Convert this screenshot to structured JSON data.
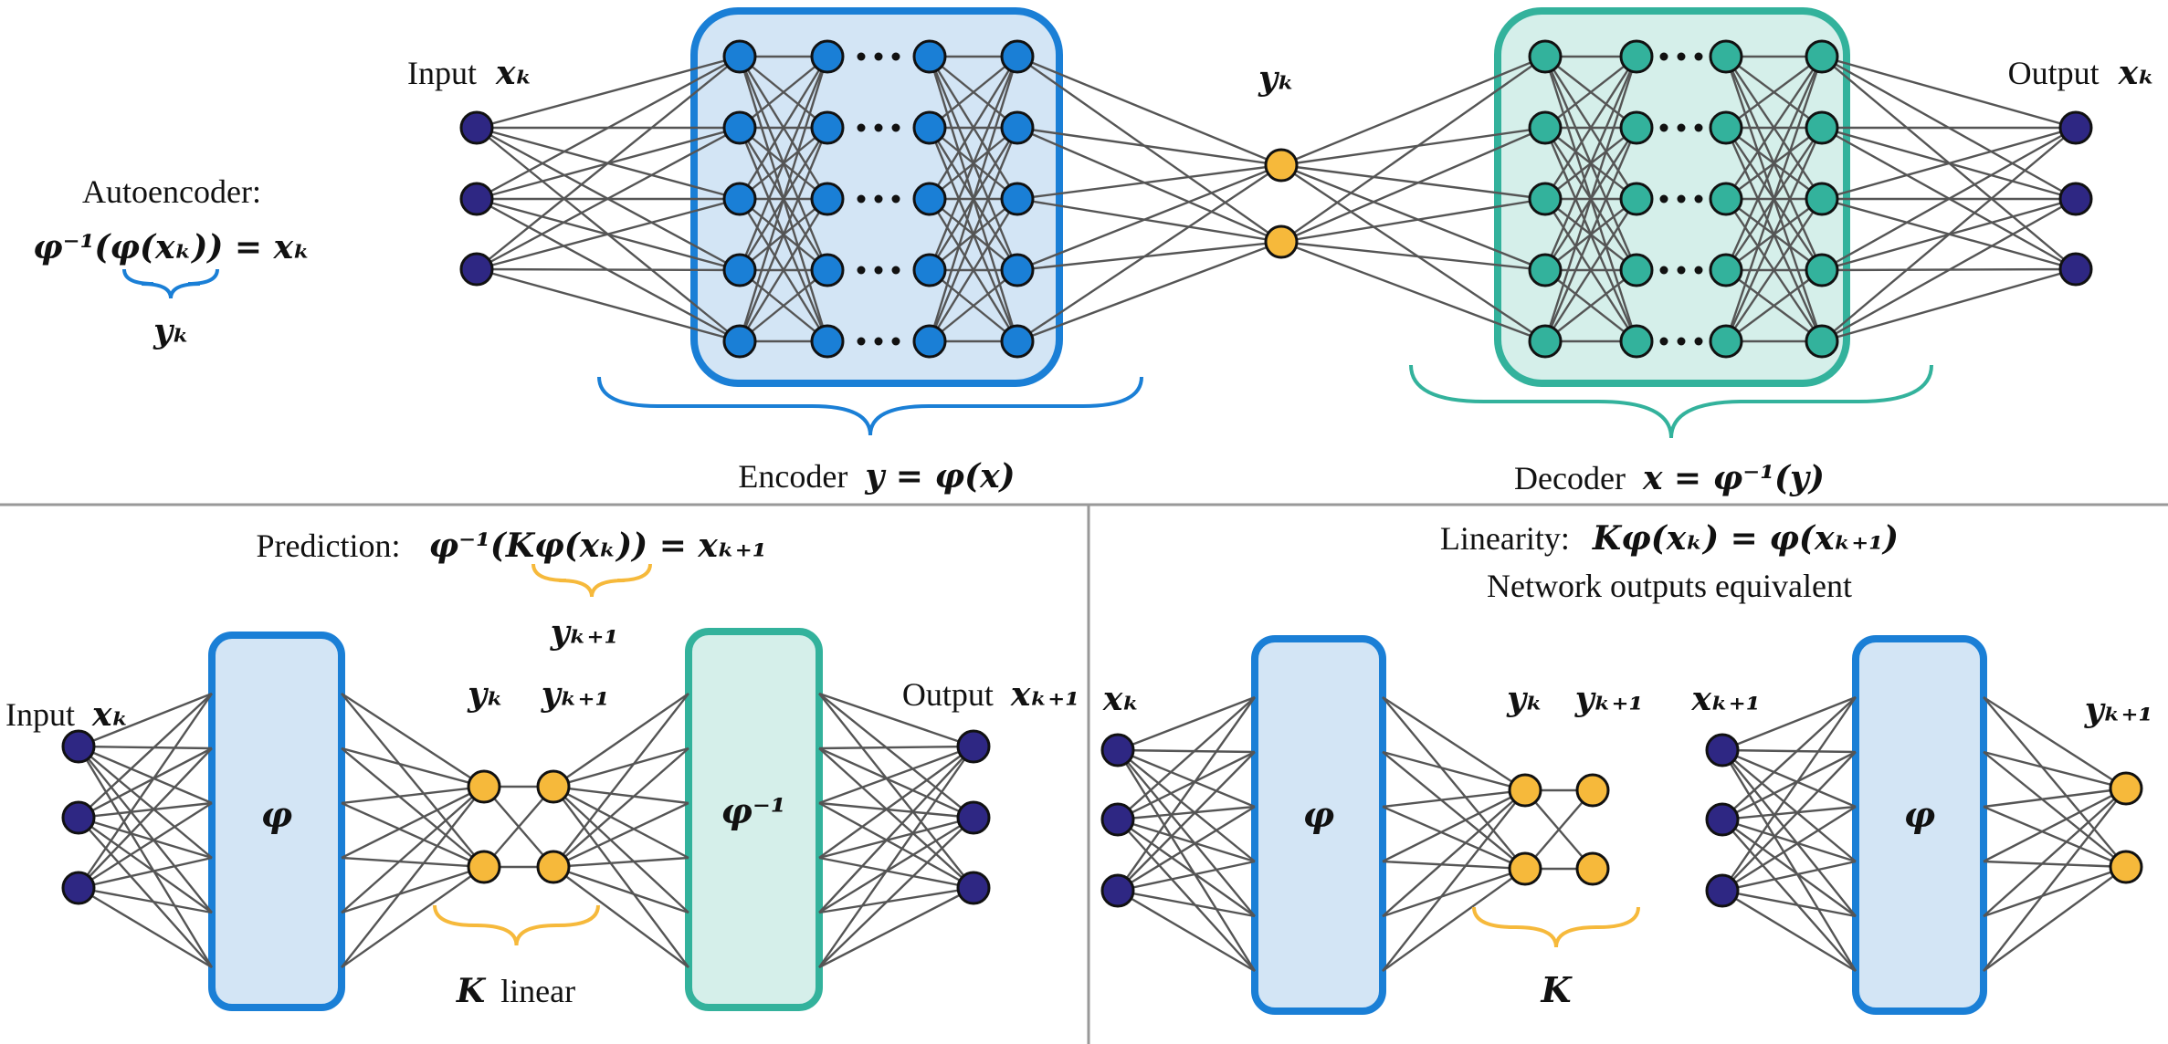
{
  "colors": {
    "io_node": "#2e2783",
    "encoder_node": "#1a7fd6",
    "decoder_node": "#33b29c",
    "latent_node": "#f6b93b",
    "encoder_border": "#1a7fd6",
    "encoder_fill": "#d3e5f5",
    "decoder_border": "#33b29c",
    "decoder_fill": "#d5efea",
    "brace_blue": "#1a7fd6",
    "brace_teal": "#33b29c",
    "brace_yellow": "#f6b93b",
    "divider": "#999999"
  },
  "top": {
    "autoencoder_title": "Autoencoder:",
    "autoencoder_eq": "φ⁻¹(φ(xₖ)) = xₖ",
    "autoencoder_brace_label": "yₖ",
    "input_text": "Input",
    "input_var": "xₖ",
    "latent_var": "yₖ",
    "output_text": "Output",
    "output_var": "xₖ",
    "encoder_text": "Encoder",
    "encoder_eq": "y = φ(x)",
    "decoder_text": "Decoder",
    "decoder_eq": "x = φ⁻¹(y)"
  },
  "bottom_left": {
    "prediction_title": "Prediction:",
    "prediction_eq": "φ⁻¹(Kφ(xₖ)) = xₖ₊₁",
    "brace_label": "yₖ₊₁",
    "input_text": "Input",
    "input_var": "xₖ",
    "phi_block": "φ",
    "latent_var_1": "yₖ",
    "latent_var_2": "yₖ₊₁",
    "phi_inv_block": "φ⁻¹",
    "output_text": "Output",
    "output_var": "xₖ₊₁",
    "k_label": "K",
    "k_suffix": "linear"
  },
  "bottom_right": {
    "linearity_title": "Linearity:",
    "linearity_eq": "Kφ(xₖ) = φ(xₖ₊₁)",
    "subtitle": "Network outputs equivalent",
    "left_input_var": "xₖ",
    "left_phi_block": "φ",
    "left_latent_1": "yₖ",
    "left_latent_2": "yₖ₊₁",
    "right_input_var": "xₖ₊₁",
    "right_phi_block": "φ",
    "right_output_var": "yₖ₊₁",
    "k_label": "K"
  }
}
